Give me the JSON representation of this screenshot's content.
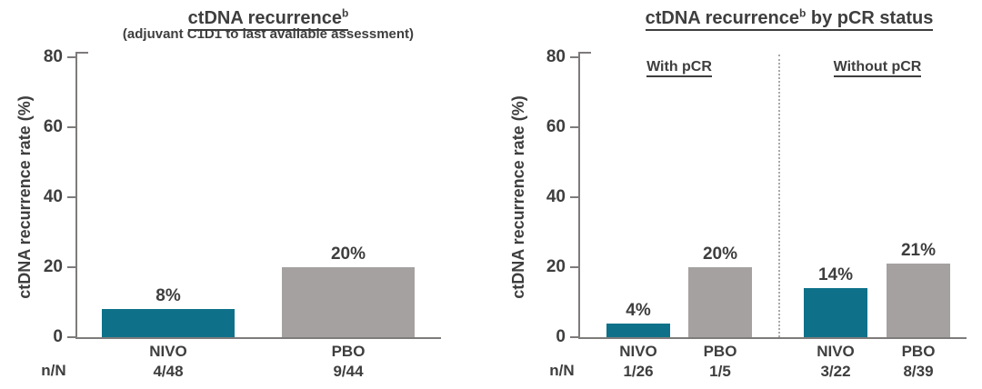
{
  "colors": {
    "nivo": "#0e7189",
    "pbo": "#a5a1a1",
    "text": "#3e3e3e",
    "axis": "#7e7b7b",
    "divider": "#a9a9a9"
  },
  "chart_data": [
    {
      "type": "bar",
      "title": "ctDNA recurrence",
      "title_sup": "b",
      "subtitle": "(adjuvant C1D1 to last available assessment)",
      "ylabel": "ctDNA recurrence rate (%)",
      "row_label": "n/N",
      "ylim": [
        0,
        80
      ],
      "yticks": [
        0,
        20,
        40,
        60,
        80
      ],
      "grid": false,
      "bars": [
        {
          "category": "NIVO",
          "value": 8,
          "label": "8%",
          "n_over_N": "4/48",
          "color": "nivo"
        },
        {
          "category": "PBO",
          "value": 20,
          "label": "20%",
          "n_over_N": "9/44",
          "color": "pbo"
        }
      ]
    },
    {
      "type": "bar",
      "title": "ctDNA recurrence",
      "title_sup": "b",
      "title_post": " by pCR status",
      "ylabel": "ctDNA recurrence rate (%)",
      "row_label": "n/N",
      "ylim": [
        0,
        80
      ],
      "yticks": [
        0,
        20,
        40,
        60,
        80
      ],
      "grid": false,
      "groups": [
        {
          "label": "With pCR",
          "bars": [
            {
              "category": "NIVO",
              "value": 4,
              "label": "4%",
              "n_over_N": "1/26",
              "color": "nivo"
            },
            {
              "category": "PBO",
              "value": 20,
              "label": "20%",
              "n_over_N": "1/5",
              "color": "pbo"
            }
          ]
        },
        {
          "label": "Without pCR",
          "bars": [
            {
              "category": "NIVO",
              "value": 14,
              "label": "14%",
              "n_over_N": "3/22",
              "color": "nivo"
            },
            {
              "category": "PBO",
              "value": 21,
              "label": "21%",
              "n_over_N": "8/39",
              "color": "pbo"
            }
          ]
        }
      ]
    }
  ]
}
